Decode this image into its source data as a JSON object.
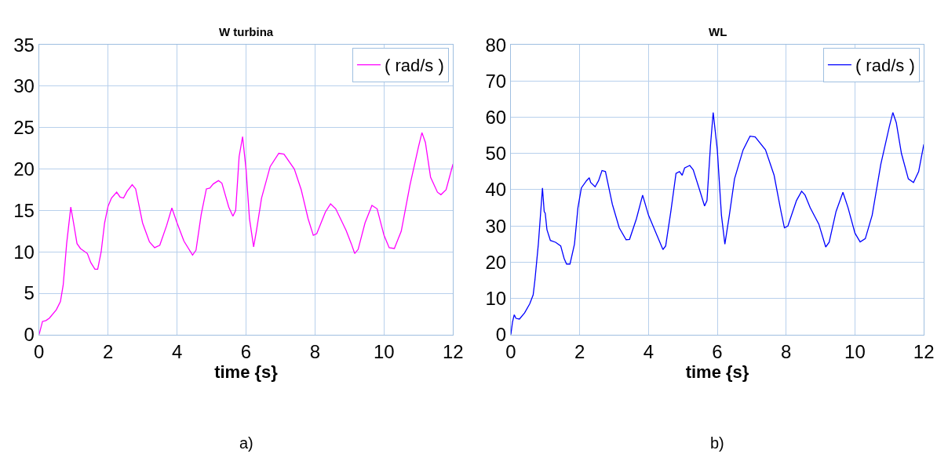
{
  "chart_data": [
    {
      "type": "line",
      "title": "W turbina",
      "xlabel": "time {s}",
      "xlim": [
        0,
        12
      ],
      "xticks": [
        0,
        2,
        4,
        6,
        8,
        10,
        12
      ],
      "ylim": [
        0,
        35
      ],
      "yticks": [
        0,
        5,
        10,
        15,
        20,
        25,
        30,
        35
      ],
      "grid": true,
      "legend": "top right",
      "marker": "none",
      "line_style": "solid",
      "annotations": [
        "a)"
      ],
      "x": [
        0,
        0.1,
        0.2,
        0.3,
        0.5,
        0.62,
        0.7,
        0.8,
        0.92,
        1.0,
        1.1,
        1.2,
        1.4,
        1.5,
        1.62,
        1.7,
        1.8,
        1.9,
        2.0,
        2.1,
        2.25,
        2.35,
        2.45,
        2.55,
        2.7,
        2.8,
        3.0,
        3.2,
        3.35,
        3.5,
        3.7,
        3.85,
        4.0,
        4.2,
        4.45,
        4.55,
        4.7,
        4.85,
        4.95,
        5.05,
        5.2,
        5.3,
        5.5,
        5.62,
        5.7,
        5.8,
        5.9,
        6.0,
        6.1,
        6.22,
        6.3,
        6.45,
        6.7,
        6.95,
        7.1,
        7.4,
        7.6,
        7.8,
        7.95,
        8.05,
        8.3,
        8.45,
        8.6,
        8.9,
        9.05,
        9.15,
        9.25,
        9.45,
        9.65,
        9.8,
        10.0,
        10.15,
        10.3,
        10.5,
        10.75,
        11.0,
        11.1,
        11.2,
        11.35,
        11.55,
        11.65,
        11.8,
        12.0
      ],
      "series": [
        {
          "name": "( rad/s )",
          "color": "#ff00ff",
          "values": [
            0,
            1.6,
            1.7,
            2.0,
            3.0,
            4.0,
            6,
            11,
            15.4,
            13.5,
            11,
            10.4,
            9.8,
            8.7,
            7.9,
            7.9,
            10,
            13.5,
            15.5,
            16.5,
            17.2,
            16.6,
            16.5,
            17.3,
            18.1,
            17.6,
            13.5,
            11.2,
            10.5,
            10.8,
            13.2,
            15.3,
            13.5,
            11.3,
            9.6,
            10.2,
            14.5,
            17.6,
            17.7,
            18.2,
            18.6,
            18.3,
            15.4,
            14.3,
            15,
            21.5,
            23.9,
            20,
            14,
            10.6,
            12.5,
            16.5,
            20.3,
            21.9,
            21.8,
            20,
            17.5,
            14,
            12,
            12.2,
            14.8,
            15.8,
            15.2,
            12.6,
            11,
            9.8,
            10.3,
            13.5,
            15.6,
            15.2,
            12,
            10.5,
            10.4,
            12.5,
            18,
            22.7,
            24.4,
            23.2,
            19,
            17.2,
            16.9,
            17.5,
            20.6
          ]
        }
      ]
    },
    {
      "type": "line",
      "title": "WL",
      "xlabel": "time {s}",
      "xlim": [
        0,
        12
      ],
      "xticks": [
        0,
        2,
        4,
        6,
        8,
        10,
        12
      ],
      "ylim": [
        0,
        80
      ],
      "yticks": [
        0,
        10,
        20,
        30,
        40,
        50,
        60,
        70,
        80
      ],
      "grid": true,
      "legend": "top right",
      "marker": "none",
      "line_style": "solid",
      "annotations": [
        "b)"
      ],
      "x": [
        0,
        0.05,
        0.1,
        0.15,
        0.25,
        0.4,
        0.55,
        0.65,
        0.7,
        0.8,
        0.92,
        0.97,
        1.0,
        1.05,
        1.15,
        1.3,
        1.45,
        1.55,
        1.62,
        1.72,
        1.85,
        1.95,
        2.05,
        2.2,
        2.28,
        2.32,
        2.45,
        2.55,
        2.65,
        2.75,
        2.95,
        3.15,
        3.35,
        3.45,
        3.65,
        3.83,
        4.0,
        4.2,
        4.42,
        4.5,
        4.65,
        4.8,
        4.9,
        4.98,
        5.05,
        5.2,
        5.3,
        5.5,
        5.63,
        5.7,
        5.8,
        5.88,
        6.0,
        6.12,
        6.22,
        6.35,
        6.5,
        6.75,
        6.95,
        7.1,
        7.4,
        7.65,
        7.85,
        7.95,
        8.05,
        8.3,
        8.45,
        8.55,
        8.7,
        8.95,
        9.15,
        9.25,
        9.45,
        9.65,
        9.8,
        10.0,
        10.15,
        10.3,
        10.5,
        10.75,
        11.0,
        11.1,
        11.2,
        11.35,
        11.55,
        11.7,
        11.85,
        12.0
      ],
      "series": [
        {
          "name": "( rad/s )",
          "color": "#0000ff",
          "values": [
            0,
            3.5,
            5.5,
            4.5,
            4.3,
            6,
            8.5,
            11,
            15,
            25,
            40.5,
            34,
            33.5,
            29,
            26,
            25.5,
            24.5,
            21,
            19.5,
            19.5,
            25,
            35,
            40.5,
            42.5,
            43.3,
            42,
            40.8,
            42.5,
            45.3,
            45,
            36,
            29.5,
            26.2,
            26.3,
            32,
            38.5,
            33,
            28.5,
            23.5,
            24.5,
            34,
            44.5,
            45,
            44,
            46,
            46.7,
            45.5,
            39.5,
            35.5,
            37,
            52,
            61.3,
            51,
            33,
            25,
            33,
            43,
            51,
            54.8,
            54.6,
            51,
            44,
            34,
            29.5,
            30,
            37,
            39.6,
            38.5,
            35,
            30.5,
            24.2,
            25.5,
            34,
            39.3,
            35,
            28,
            25.6,
            26.5,
            33,
            47,
            57.5,
            61.3,
            58.5,
            50,
            43,
            42,
            45,
            52.5
          ]
        }
      ]
    }
  ]
}
